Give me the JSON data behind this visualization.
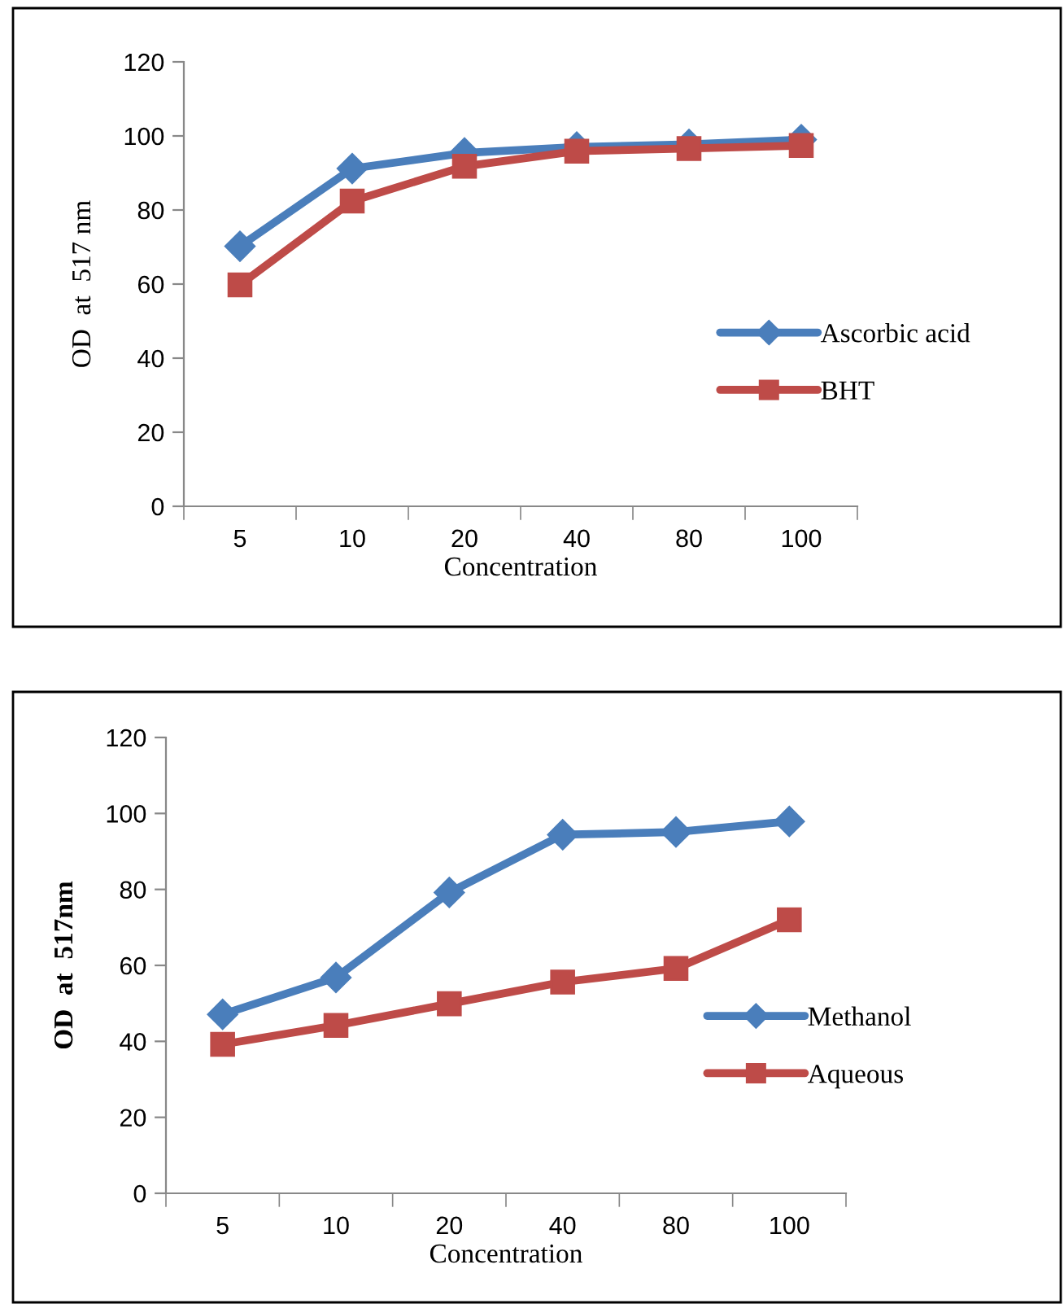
{
  "chart_data": [
    {
      "type": "line",
      "xlabel": "Concentration",
      "ylabel": "OD  at  517 nm",
      "categories": [
        "5",
        "10",
        "20",
        "40",
        "80",
        "100"
      ],
      "ylim": [
        0,
        120
      ],
      "yticks": [
        0,
        20,
        40,
        60,
        80,
        100,
        120
      ],
      "grid": false,
      "legend": "right",
      "series": [
        {
          "name": "Ascorbic acid",
          "color": "#4a7ebb",
          "marker": "diamond",
          "values": [
            70.2,
            91.2,
            95.4,
            97,
            97.7,
            99
          ]
        },
        {
          "name": "BHT",
          "color": "#be4b48",
          "marker": "square",
          "values": [
            59.8,
            82.4,
            91.8,
            95.9,
            96.6,
            97.4
          ]
        }
      ]
    },
    {
      "type": "line",
      "xlabel": "Concentration",
      "ylabel": "OD  at  517nm",
      "categories": [
        "5",
        "10",
        "20",
        "40",
        "80",
        "100"
      ],
      "ylim": [
        0,
        120
      ],
      "yticks": [
        0,
        20,
        40,
        60,
        80,
        100,
        120
      ],
      "grid": false,
      "legend": "right",
      "series": [
        {
          "name": "Methanol",
          "color": "#4a7ebb",
          "marker": "diamond",
          "values": [
            47.1,
            56.8,
            79.2,
            94.4,
            95.1,
            97.9
          ]
        },
        {
          "name": "Aqueous",
          "color": "#be4b48",
          "marker": "square",
          "values": [
            39.2,
            44.2,
            49.9,
            55.6,
            59.2,
            72.0
          ]
        }
      ]
    }
  ]
}
